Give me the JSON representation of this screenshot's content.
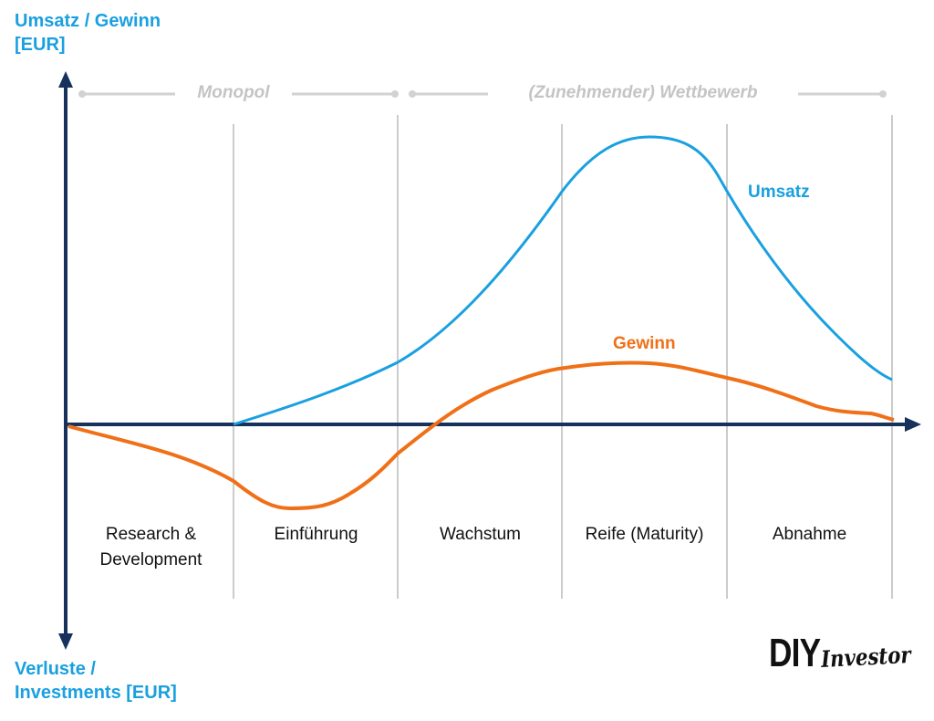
{
  "y_axis": {
    "top_title": "Umsatz / Gewinn\n[EUR]",
    "bottom_title": "Verluste /\nInvestments [EUR]"
  },
  "phases": {
    "monopol": "Monopol",
    "wettbewerb": "(Zunehmender) Wettbewerb"
  },
  "stages": [
    "Research &\nDevelopment",
    "Einführung",
    "Wachstum",
    "Reife (Maturity)",
    "Abnahme"
  ],
  "curves": {
    "umsatz": "Umsatz",
    "gewinn": "Gewinn"
  },
  "colors": {
    "axis": "#16325c",
    "umsatz": "#1aa0e0",
    "gewinn": "#f07018",
    "phase_line": "#d2d2d2",
    "divider": "#999999"
  },
  "logo": {
    "part1": "DIY",
    "part2": "Investor"
  }
}
